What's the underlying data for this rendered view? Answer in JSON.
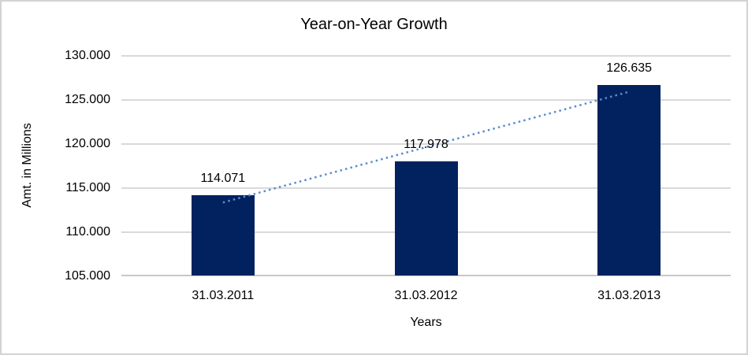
{
  "window": {
    "background": "#ffffff",
    "border_color": "#d3d3d3"
  },
  "chart_data": {
    "type": "bar",
    "title": "Year-on-Year Growth",
    "xlabel": "Years",
    "ylabel": "Amt. in Millions",
    "categories": [
      "31.03.2011",
      "31.03.2012",
      "31.03.2013"
    ],
    "values": [
      114.071,
      117.978,
      126.635
    ],
    "value_labels": [
      "114.071",
      "117.978",
      "126.635"
    ],
    "ylim": [
      105,
      130
    ],
    "ytick_values": [
      130,
      125,
      120,
      115,
      110,
      105
    ],
    "ytick_labels": [
      "130.000",
      "125.000",
      "120.000",
      "115.000",
      "110.000",
      "105.000"
    ],
    "grid": "horizontal-gridlines-on",
    "legend": "none",
    "bar_color": "#01215f",
    "gridline_color": "#d9d9d9",
    "axis_line_color": "#c7c7c7",
    "trendline": {
      "type": "linear",
      "style": "dotted",
      "color": "#5b8bd0",
      "start_value": 113.279,
      "end_value": 125.843
    }
  }
}
